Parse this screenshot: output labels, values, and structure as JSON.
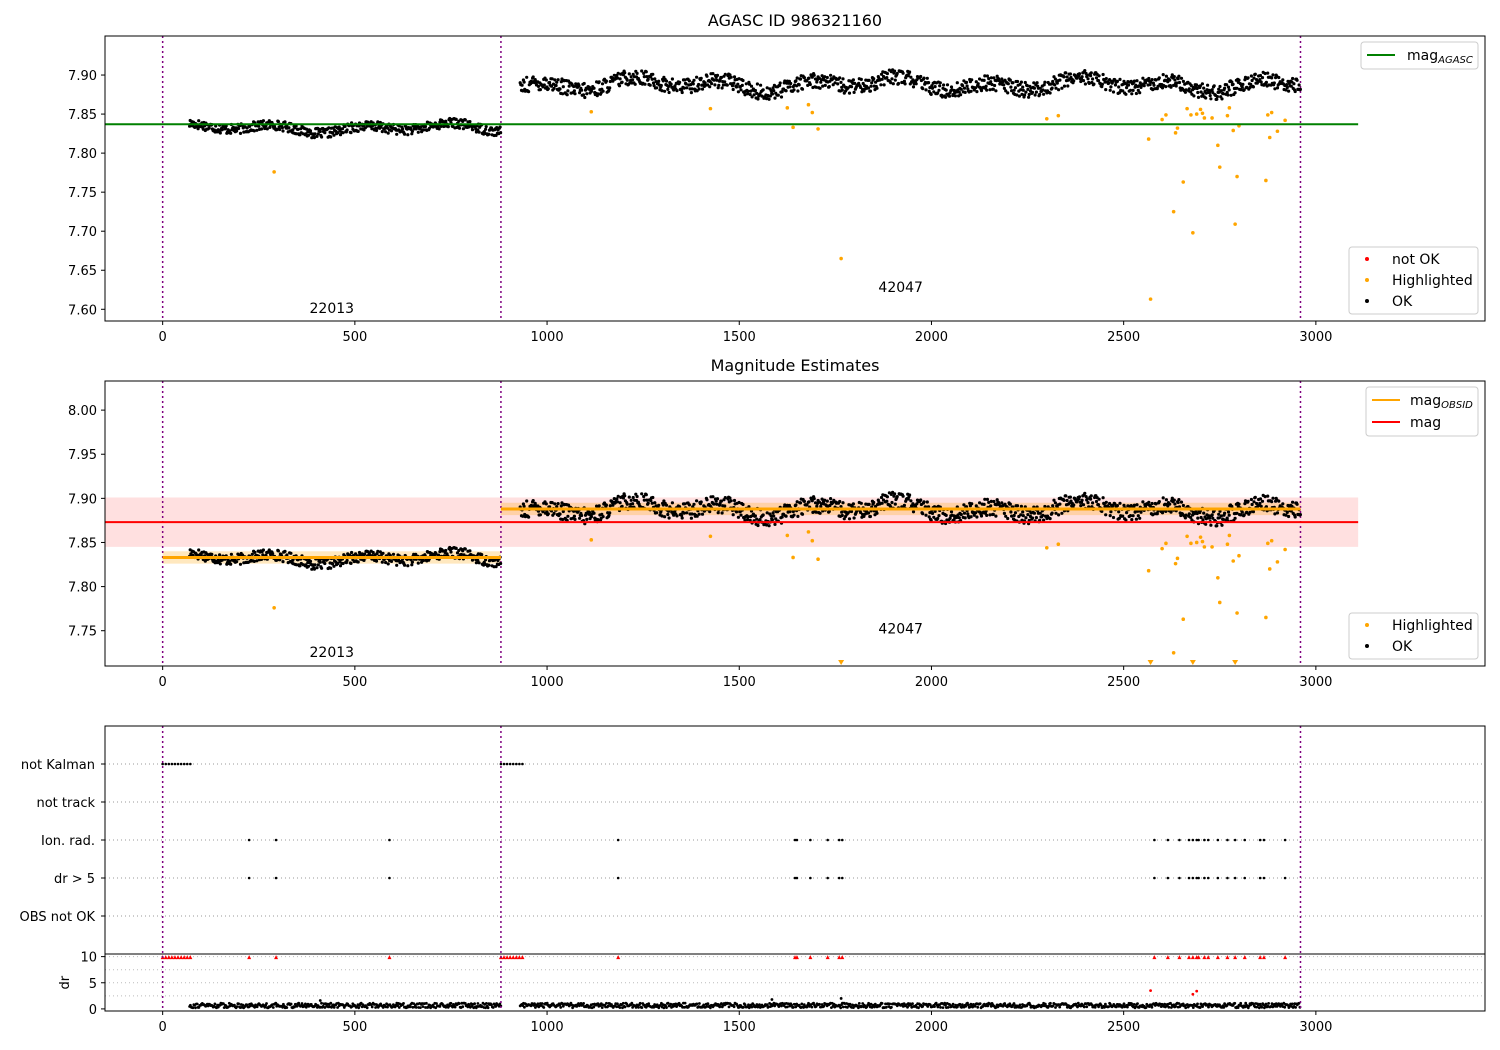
{
  "chart_data": [
    {
      "type": "scatter",
      "title": "AGASC ID 986321160",
      "xlim": [
        -150,
        3440
      ],
      "ylim": [
        7.585,
        7.95
      ],
      "xticks": [
        0,
        500,
        1000,
        1500,
        2000,
        2500,
        3000
      ],
      "yticks": [
        7.6,
        7.65,
        7.7,
        7.75,
        7.8,
        7.85,
        7.9
      ],
      "ytick_labels": [
        "7.60",
        "7.65",
        "7.70",
        "7.75",
        "7.80",
        "7.85",
        "7.90"
      ],
      "obs_boundaries": [
        0,
        880,
        2960
      ],
      "obs_labels": [
        {
          "text": "22013",
          "x": 440,
          "y": 7.595
        },
        {
          "text": "42047",
          "x": 1920,
          "y": 7.622
        }
      ],
      "mag_agasc": 7.837,
      "ok_segments": [
        {
          "x0": 70,
          "x1": 880,
          "base": 7.832,
          "amp": 0.009
        },
        {
          "x0": 930,
          "x1": 2960,
          "base": 7.888,
          "amp": 0.014
        }
      ],
      "highlighted": [
        [
          290,
          7.776
        ],
        [
          1115,
          7.853
        ],
        [
          1425,
          7.857
        ],
        [
          1625,
          7.858
        ],
        [
          1640,
          7.833
        ],
        [
          1680,
          7.862
        ],
        [
          1690,
          7.852
        ],
        [
          1705,
          7.831
        ],
        [
          1765,
          7.665
        ],
        [
          2300,
          7.844
        ],
        [
          2330,
          7.848
        ],
        [
          2565,
          7.818
        ],
        [
          2570,
          7.613
        ],
        [
          2600,
          7.843
        ],
        [
          2610,
          7.849
        ],
        [
          2630,
          7.725
        ],
        [
          2635,
          7.826
        ],
        [
          2640,
          7.832
        ],
        [
          2655,
          7.763
        ],
        [
          2665,
          7.857
        ],
        [
          2675,
          7.849
        ],
        [
          2680,
          7.698
        ],
        [
          2690,
          7.85
        ],
        [
          2700,
          7.856
        ],
        [
          2705,
          7.851
        ],
        [
          2710,
          7.845
        ],
        [
          2730,
          7.845
        ],
        [
          2745,
          7.81
        ],
        [
          2750,
          7.782
        ],
        [
          2770,
          7.848
        ],
        [
          2775,
          7.858
        ],
        [
          2785,
          7.829
        ],
        [
          2790,
          7.709
        ],
        [
          2795,
          7.77
        ],
        [
          2800,
          7.835
        ],
        [
          2870,
          7.765
        ],
        [
          2875,
          7.849
        ],
        [
          2880,
          7.82
        ],
        [
          2885,
          7.852
        ],
        [
          2900,
          7.828
        ],
        [
          2920,
          7.842
        ]
      ],
      "legend_upper": [
        {
          "label": "mag",
          "sub": "AGASC",
          "color": "#008000"
        }
      ],
      "legend_lower": [
        {
          "label": "not OK",
          "color": "#ff0000"
        },
        {
          "label": "Highlighted",
          "color": "#ffa500"
        },
        {
          "label": "OK",
          "color": "#000000"
        }
      ]
    },
    {
      "type": "scatter",
      "title": "Magnitude Estimates",
      "xlim": [
        -150,
        3440
      ],
      "ylim": [
        7.71,
        8.033
      ],
      "xticks": [
        0,
        500,
        1000,
        1500,
        2000,
        2500,
        3000
      ],
      "yticks": [
        7.75,
        7.8,
        7.85,
        7.9,
        7.95,
        8.0
      ],
      "ytick_labels": [
        "7.75",
        "7.80",
        "7.85",
        "7.90",
        "7.95",
        "8.00"
      ],
      "obs_boundaries": [
        0,
        880,
        2960
      ],
      "obs_labels": [
        {
          "text": "22013",
          "x": 440,
          "y": 7.72
        },
        {
          "text": "42047",
          "x": 1920,
          "y": 7.747
        }
      ],
      "mag": 7.873,
      "mag_band": [
        7.845,
        7.901
      ],
      "mag_obsid": [
        {
          "x0": 0,
          "x1": 880,
          "value": 7.833,
          "band": [
            7.826,
            7.84
          ]
        },
        {
          "x0": 880,
          "x1": 2960,
          "value": 7.888,
          "band": [
            7.881,
            7.895
          ]
        }
      ],
      "below_range_markers": [
        1765,
        2570,
        2680,
        2790
      ],
      "legend_upper": [
        {
          "label": "mag",
          "sub": "OBSID",
          "color": "#ffa500"
        },
        {
          "label": "mag",
          "color": "#ff0000"
        }
      ],
      "legend_lower": [
        {
          "label": "Highlighted",
          "color": "#ffa500"
        },
        {
          "label": "OK",
          "color": "#000000"
        }
      ]
    },
    {
      "type": "scatter",
      "xlim": [
        -150,
        3440
      ],
      "xticks": [
        0,
        500,
        1000,
        1500,
        2000,
        2500,
        3000
      ],
      "obs_boundaries": [
        0,
        880,
        2960
      ],
      "flag_rows": [
        {
          "label": "not Kalman",
          "x": [
            0,
            8,
            16,
            24,
            32,
            40,
            48,
            56,
            64,
            72,
            880,
            888,
            896,
            904,
            912,
            920,
            928,
            936
          ]
        },
        {
          "label": "not track",
          "x": []
        },
        {
          "label": "Ion. rad.",
          "x": [
            225,
            295,
            590,
            1185,
            1645,
            1650,
            1685,
            1730,
            1760,
            1768,
            2580,
            2615,
            2645,
            2670,
            2680,
            2690,
            2695,
            2710,
            2720,
            2745,
            2770,
            2790,
            2815,
            2855,
            2865,
            2920
          ]
        },
        {
          "label": "dr > 5",
          "x": [
            225,
            295,
            590,
            1185,
            1645,
            1650,
            1685,
            1730,
            1760,
            1768,
            2580,
            2615,
            2645,
            2670,
            2680,
            2690,
            2695,
            2710,
            2720,
            2745,
            2770,
            2790,
            2815,
            2855,
            2865,
            2920
          ]
        },
        {
          "label": "OBS not OK",
          "x": []
        }
      ],
      "dr": {
        "ylabel": "dr",
        "ylim": [
          -0.4,
          10.5
        ],
        "yticks": [
          0,
          5,
          10
        ],
        "ytick_labels": [
          "0",
          "5",
          "10"
        ],
        "typical": 0.7,
        "spikes": [
          [
            2570,
            3.5
          ],
          [
            2680,
            2.8
          ],
          [
            2690,
            3.4
          ],
          [
            1765,
            2.0
          ],
          [
            1585,
            1.8
          ],
          [
            410,
            1.6
          ]
        ],
        "clipped_red_x": [
          0,
          8,
          16,
          24,
          32,
          40,
          48,
          56,
          64,
          72,
          225,
          295,
          590,
          880,
          888,
          896,
          904,
          912,
          920,
          928,
          936,
          1185,
          1645,
          1650,
          1685,
          1730,
          1760,
          1768,
          2580,
          2615,
          2645,
          2670,
          2680,
          2690,
          2695,
          2710,
          2720,
          2745,
          2770,
          2790,
          2815,
          2855,
          2865,
          2920
        ]
      }
    }
  ]
}
